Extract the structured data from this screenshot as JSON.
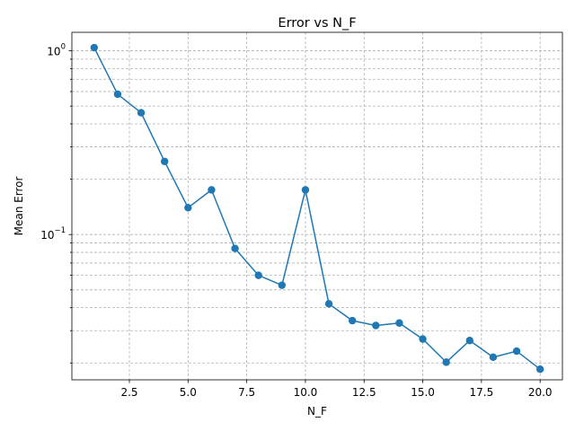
{
  "chart_data": {
    "type": "line",
    "title": "Error vs N_F",
    "xlabel": "N_F",
    "ylabel": "Mean Error",
    "yscale": "log",
    "xlim": [
      0.05,
      20.95
    ],
    "ylim": [
      0.0162,
      1.26
    ],
    "grid": true,
    "color": "#1f77b4",
    "x_ticks": [
      2.5,
      5.0,
      7.5,
      10.0,
      12.5,
      15.0,
      17.5,
      20.0
    ],
    "x_tick_labels": [
      "2.5",
      "5.0",
      "7.5",
      "10.0",
      "12.5",
      "15.0",
      "17.5",
      "20.0"
    ],
    "y_ticks": [
      0.1,
      1.0
    ],
    "y_tick_base": "10",
    "y_tick_exponents": [
      "−1",
      "0"
    ],
    "series": [
      {
        "x": [
          1,
          2,
          3,
          4,
          5,
          6,
          7,
          8,
          9,
          10,
          11,
          12,
          13,
          14,
          15,
          16,
          17,
          18,
          19,
          20
        ],
        "values": [
          1.04,
          0.58,
          0.46,
          0.25,
          0.14,
          0.175,
          0.084,
          0.06,
          0.053,
          0.175,
          0.042,
          0.034,
          0.032,
          0.033,
          0.027,
          0.0202,
          0.0265,
          0.0215,
          0.0232,
          0.0185
        ]
      }
    ]
  }
}
